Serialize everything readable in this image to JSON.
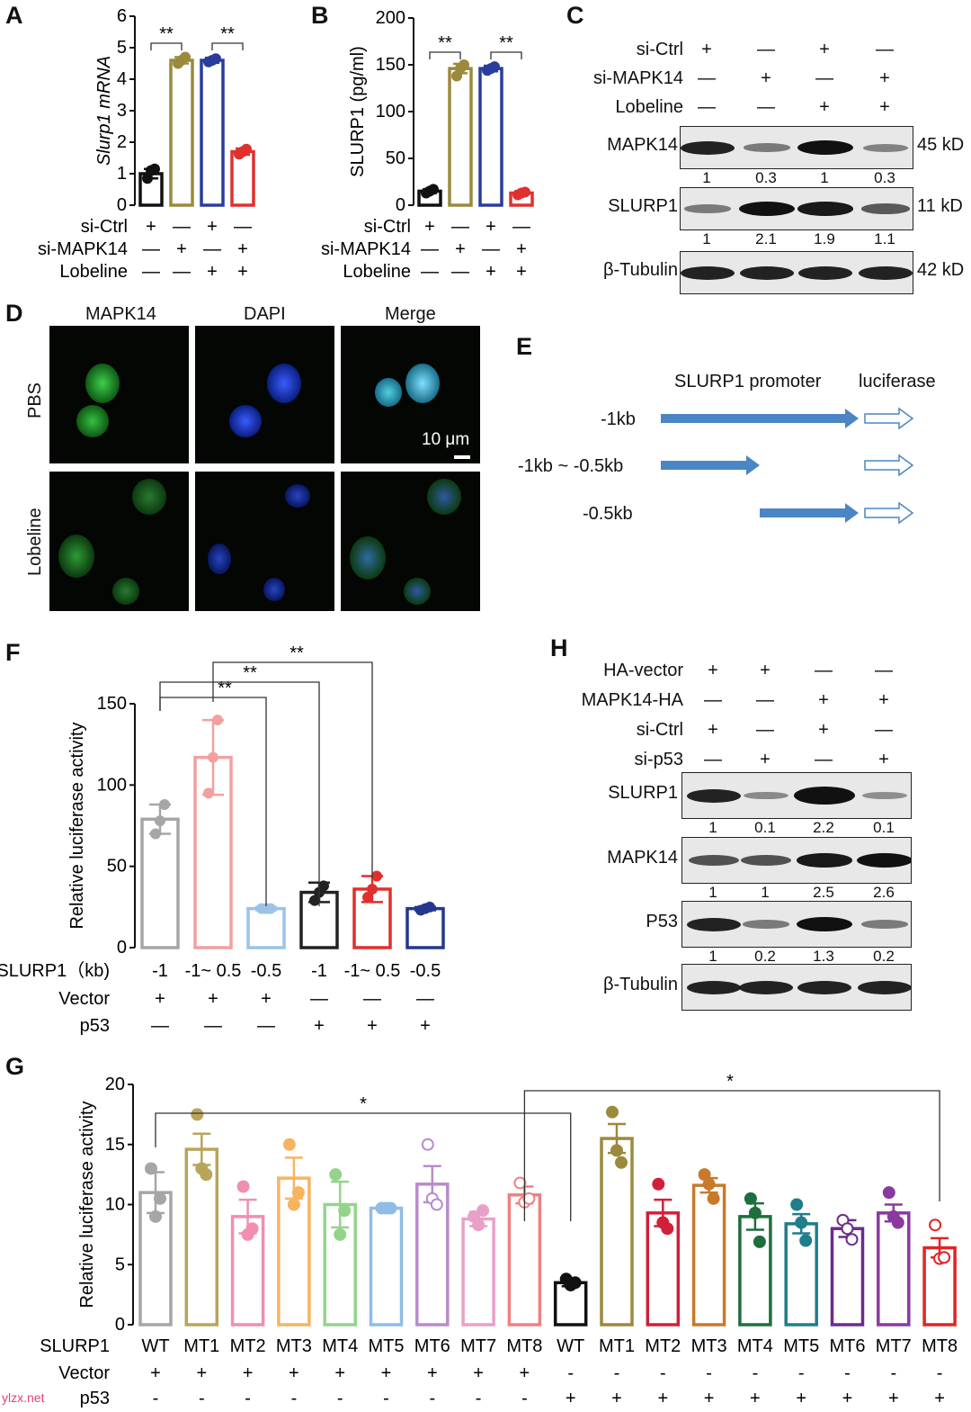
{
  "panels": {
    "A": "A",
    "B": "B",
    "C": "C",
    "D": "D",
    "E": "E",
    "F": "F",
    "G": "G",
    "H": "H"
  },
  "chart_data": [
    {
      "panel": "A",
      "type": "bar",
      "ylabel": "Slurp1 mRNA",
      "ylim": [
        0,
        6
      ],
      "yticks": [
        "0",
        "1",
        "2",
        "3",
        "4",
        "5",
        "6"
      ],
      "categories": [
        "1",
        "2",
        "3",
        "4"
      ],
      "values": [
        1.0,
        4.6,
        4.6,
        1.7
      ],
      "errors": [
        0.15,
        0.1,
        0.08,
        0.1
      ],
      "points": [
        [
          0.85,
          1.1,
          1.15
        ],
        [
          4.5,
          4.6,
          4.7
        ],
        [
          4.55,
          4.6,
          4.65
        ],
        [
          1.62,
          1.7,
          1.78
        ]
      ],
      "colors": [
        "#111111",
        "#9b8a3c",
        "#2a3d9c",
        "#e0302e"
      ],
      "significance": [
        {
          "from": 0,
          "to": 1,
          "label": "**"
        },
        {
          "from": 2,
          "to": 3,
          "label": "**"
        }
      ],
      "conditions": [
        {
          "label": "si-Ctrl",
          "marks": [
            "+",
            "—",
            "+",
            "—"
          ]
        },
        {
          "label": "si-MAPK14",
          "marks": [
            "—",
            "+",
            "—",
            "+"
          ]
        },
        {
          "label": "Lobeline",
          "marks": [
            "—",
            "—",
            "+",
            "+"
          ]
        }
      ]
    },
    {
      "panel": "B",
      "type": "bar",
      "ylabel": "SLURP1 (pg/ml)",
      "ylim": [
        0,
        200
      ],
      "yticks": [
        "0",
        "50",
        "100",
        "150",
        "200"
      ],
      "categories": [
        "1",
        "2",
        "3",
        "4"
      ],
      "values": [
        15,
        146,
        146,
        13
      ],
      "errors": [
        2,
        5,
        3,
        2
      ],
      "points": [
        [
          13,
          15,
          17
        ],
        [
          138,
          146,
          150
        ],
        [
          144,
          146,
          148
        ],
        [
          11,
          13,
          14
        ]
      ],
      "colors": [
        "#111111",
        "#9b8a3c",
        "#2a3d9c",
        "#e0302e"
      ],
      "significance": [
        {
          "from": 0,
          "to": 1,
          "label": "**"
        },
        {
          "from": 2,
          "to": 3,
          "label": "**"
        }
      ],
      "conditions": [
        {
          "label": "si-Ctrl",
          "marks": [
            "+",
            "—",
            "+",
            "—"
          ]
        },
        {
          "label": "si-MAPK14",
          "marks": [
            "—",
            "+",
            "—",
            "+"
          ]
        },
        {
          "label": "Lobeline",
          "marks": [
            "—",
            "—",
            "+",
            "+"
          ]
        }
      ]
    },
    {
      "panel": "F",
      "type": "bar",
      "ylabel": "Relative luciferase activity",
      "ylim": [
        0,
        150
      ],
      "yticks": [
        "0",
        "50",
        "100",
        "150"
      ],
      "categories": [
        "-1",
        "-1~ 0.5",
        "-0.5",
        "-1",
        "-1~ 0.5",
        "-0.5"
      ],
      "values": [
        79,
        117,
        24,
        34,
        36,
        24
      ],
      "errors": [
        9,
        23,
        1,
        6,
        8,
        1
      ],
      "points": [
        [
          70,
          78,
          88
        ],
        [
          95,
          117,
          140
        ],
        [
          24,
          24,
          24
        ],
        [
          29,
          34,
          38
        ],
        [
          31,
          36,
          44
        ],
        [
          23,
          24,
          25
        ]
      ],
      "colors": [
        "#a6a6a6",
        "#f2a0a0",
        "#9cc2ea",
        "#222222",
        "#e0302e",
        "#25388f"
      ],
      "significance": [
        {
          "from": 0,
          "to": 2,
          "label": "**"
        },
        {
          "from": 0,
          "to": 3,
          "label": "**"
        },
        {
          "from": 1,
          "to": 4,
          "label": "**"
        }
      ],
      "category_row_label": "SLURP1（kb)",
      "conditions": [
        {
          "label": "Vector",
          "marks": [
            "+",
            "+",
            "+",
            "—",
            "—",
            "—"
          ]
        },
        {
          "label": "p53",
          "marks": [
            "—",
            "—",
            "—",
            "+",
            "+",
            "+"
          ]
        }
      ]
    },
    {
      "panel": "G",
      "type": "bar",
      "ylabel": "Relative luciferase activity",
      "ylim": [
        0,
        20
      ],
      "yticks": [
        "0",
        "5",
        "10",
        "15",
        "20"
      ],
      "categories": [
        "WT",
        "MT1",
        "MT2",
        "MT3",
        "MT4",
        "MT5",
        "MT6",
        "MT7",
        "MT8",
        "WT",
        "MT1",
        "MT2",
        "MT3",
        "MT4",
        "MT5",
        "MT6",
        "MT7",
        "MT8"
      ],
      "values": [
        11.0,
        14.6,
        9.0,
        12.2,
        10.0,
        9.7,
        11.7,
        8.8,
        10.8,
        3.5,
        15.5,
        9.3,
        11.6,
        9.0,
        8.4,
        8.0,
        9.3,
        6.4
      ],
      "errors": [
        1.7,
        1.3,
        1.4,
        1.7,
        1.9,
        0.1,
        1.5,
        0.6,
        0.7,
        0.3,
        1.2,
        1.1,
        0.6,
        1.1,
        0.8,
        0.7,
        0.7,
        0.8
      ],
      "points": [
        [
          13,
          9,
          10.5
        ],
        [
          17.5,
          13,
          12.5
        ],
        [
          11.5,
          7.5,
          8
        ],
        [
          15,
          10,
          11
        ],
        [
          12.5,
          7.5,
          9.5
        ],
        [
          9.7,
          9.7,
          9.7
        ],
        [
          15,
          10.5,
          10
        ],
        [
          9,
          8.3,
          9.5
        ],
        [
          11.8,
          10.2,
          10.5
        ],
        [
          3.8,
          3.3,
          3.5
        ],
        [
          17.7,
          14.5,
          13.5
        ],
        [
          11.7,
          8.5,
          8
        ],
        [
          12.5,
          11.7,
          10.5
        ],
        [
          10.5,
          9.3,
          6.9
        ],
        [
          10,
          8.5,
          7
        ],
        [
          8.7,
          8,
          7.1
        ],
        [
          11,
          9,
          8.5
        ],
        [
          8.3,
          5.5,
          5.6
        ]
      ],
      "colors": [
        "#a6a6a6",
        "#b8a55a",
        "#f08fb0",
        "#f6b461",
        "#93d48a",
        "#8fbde8",
        "#b98ccc",
        "#e9a0c8",
        "#f08080",
        "#111111",
        "#9b8a3c",
        "#d0203a",
        "#c9792a",
        "#1e6e3e",
        "#1f7d8c",
        "#6b2d8a",
        "#8a3a9e",
        "#e02424"
      ],
      "significance": [
        {
          "from": 0,
          "to": 9,
          "label": "*"
        },
        {
          "from": 8,
          "to": 17,
          "label": "*"
        }
      ],
      "category_row_label": "SLURP1",
      "conditions": [
        {
          "label": "Vector",
          "marks": [
            "+",
            "+",
            "+",
            "+",
            "+",
            "+",
            "+",
            "+",
            "+",
            "-",
            "-",
            "-",
            "-",
            "-",
            "-",
            "-",
            "-",
            "-"
          ]
        },
        {
          "label": "p53",
          "marks": [
            "-",
            "-",
            "-",
            "-",
            "-",
            "-",
            "-",
            "-",
            "-",
            "+",
            "+",
            "+",
            "+",
            "+",
            "+",
            "+",
            "+",
            "+"
          ]
        }
      ]
    }
  ],
  "westernC": {
    "conditions": [
      {
        "label": "si-Ctrl",
        "marks": [
          "+",
          "—",
          "+",
          "—"
        ]
      },
      {
        "label": "si-MAPK14",
        "marks": [
          "—",
          "+",
          "—",
          "+"
        ]
      },
      {
        "label": "Lobeline",
        "marks": [
          "—",
          "—",
          "+",
          "+"
        ]
      }
    ],
    "rows": [
      {
        "name": "MAPK14",
        "size": "45 kD",
        "quant": [
          "1",
          "0.3",
          "1",
          "0.3"
        ]
      },
      {
        "name": "SLURP1",
        "size": "11 kD",
        "quant": [
          "1",
          "2.1",
          "1.9",
          "1.1"
        ]
      },
      {
        "name": "β-Tubulin",
        "size": "42 kD",
        "quant": []
      }
    ]
  },
  "westernH": {
    "conditions": [
      {
        "label": "HA-vector",
        "marks": [
          "+",
          "+",
          "—",
          "—"
        ]
      },
      {
        "label": "MAPK14-HA",
        "marks": [
          "—",
          "—",
          "+",
          "+"
        ]
      },
      {
        "label": "si-Ctrl",
        "marks": [
          "+",
          "—",
          "+",
          "—"
        ]
      },
      {
        "label": "si-p53",
        "marks": [
          "—",
          "+",
          "—",
          "+"
        ]
      }
    ],
    "rows": [
      {
        "name": "SLURP1",
        "quant": [
          "1",
          "0.1",
          "2.2",
          "0.1"
        ]
      },
      {
        "name": "MAPK14",
        "quant": [
          "1",
          "1",
          "2.5",
          "2.6"
        ]
      },
      {
        "name": "P53",
        "quant": [
          "1",
          "0.2",
          "1.3",
          "0.2"
        ]
      },
      {
        "name": "β-Tubulin",
        "quant": []
      }
    ]
  },
  "panelD": {
    "columns": [
      "MAPK14",
      "DAPI",
      "Merge"
    ],
    "rows": [
      "PBS",
      "Lobeline"
    ],
    "scalebar": "10 μm"
  },
  "panelE": {
    "header_promoter": "SLURP1 promoter",
    "header_luc": "luciferase",
    "rows": [
      "-1kb",
      "-1kb ~ -0.5kb",
      "-0.5kb"
    ]
  },
  "watermark": "ylzx.net"
}
